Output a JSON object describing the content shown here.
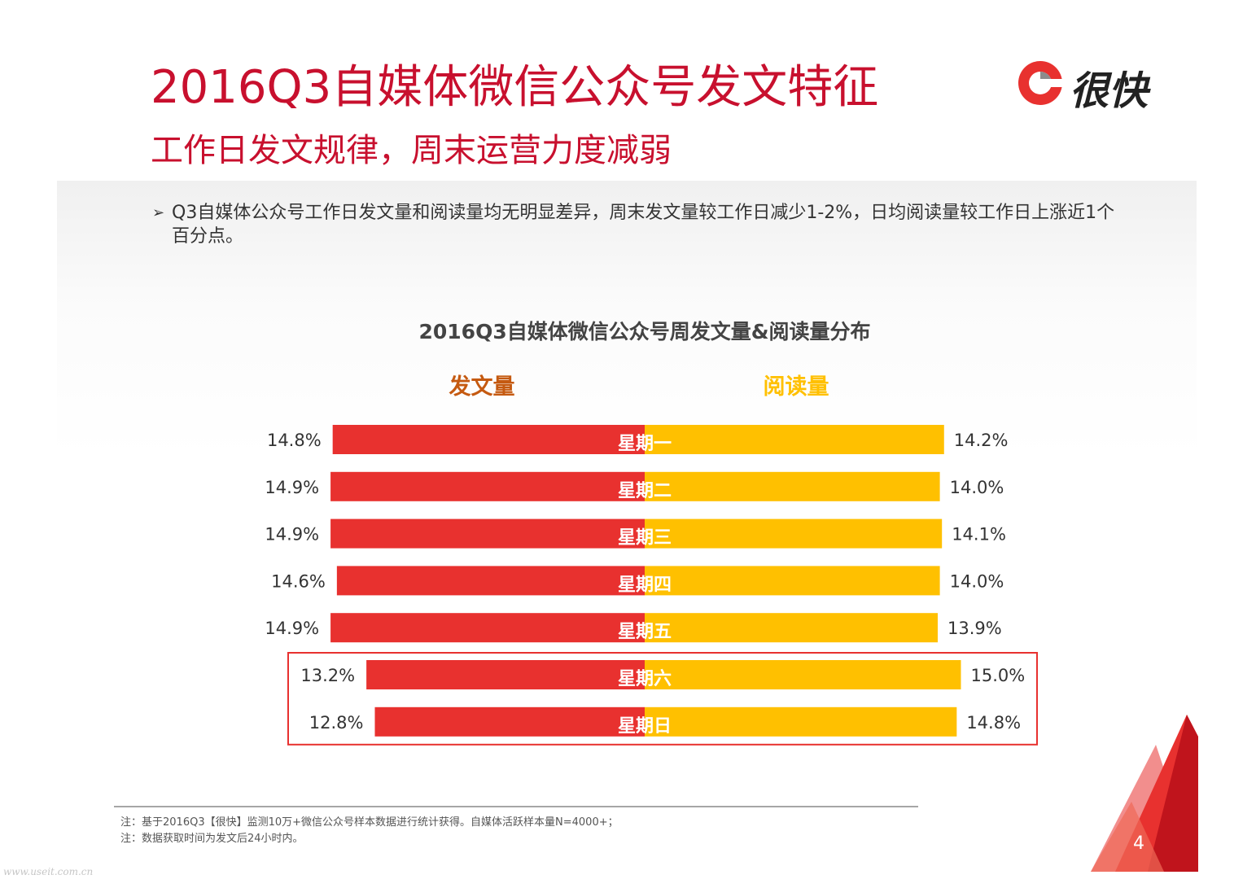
{
  "header": {
    "title": "2016Q3自媒体微信公众号发文特征",
    "subtitle": "工作日发文规律，周末运营力度减弱",
    "logo_text": "很快"
  },
  "bullet": {
    "mark": "➢",
    "text": "Q3自媒体公众号工作日发文量和阅读量均无明显差异，周末发文量较工作日减少1-2%，日均阅读量较工作日上涨近1个百分点。"
  },
  "chart_data": {
    "type": "bar",
    "title": "2016Q3自媒体微信公众号周发文量&阅读量分布",
    "categories": [
      "星期一",
      "星期二",
      "星期三",
      "星期四",
      "星期五",
      "星期六",
      "星期日"
    ],
    "series": [
      {
        "name": "发文量",
        "values": [
          14.8,
          14.9,
          14.9,
          14.6,
          14.9,
          13.2,
          12.8
        ],
        "labels": [
          "14.8%",
          "14.9%",
          "14.9%",
          "14.6%",
          "14.9%",
          "13.2%",
          "12.8%"
        ],
        "color": "#e8312f"
      },
      {
        "name": "阅读量",
        "values": [
          14.2,
          14.0,
          14.1,
          14.0,
          13.9,
          15.0,
          14.8
        ],
        "labels": [
          "14.2%",
          "14.0%",
          "14.1%",
          "14.0%",
          "13.9%",
          "15.0%",
          "14.8%"
        ],
        "color": "#ffc000"
      }
    ],
    "highlight": [
      "星期六",
      "星期日"
    ],
    "highlight_color": "#e8312f",
    "legend_colors": [
      "#c55a11",
      "#ffc000"
    ]
  },
  "footnote": {
    "line1": "注：基于2016Q3【很快】监测10万+微信公众号样本数据进行统计获得。自媒体活跃样本量N=4000+；",
    "line2": "注：数据获取时间为发文后24小时内。"
  },
  "page_number": "4",
  "watermark": "www.useit.com.cn"
}
